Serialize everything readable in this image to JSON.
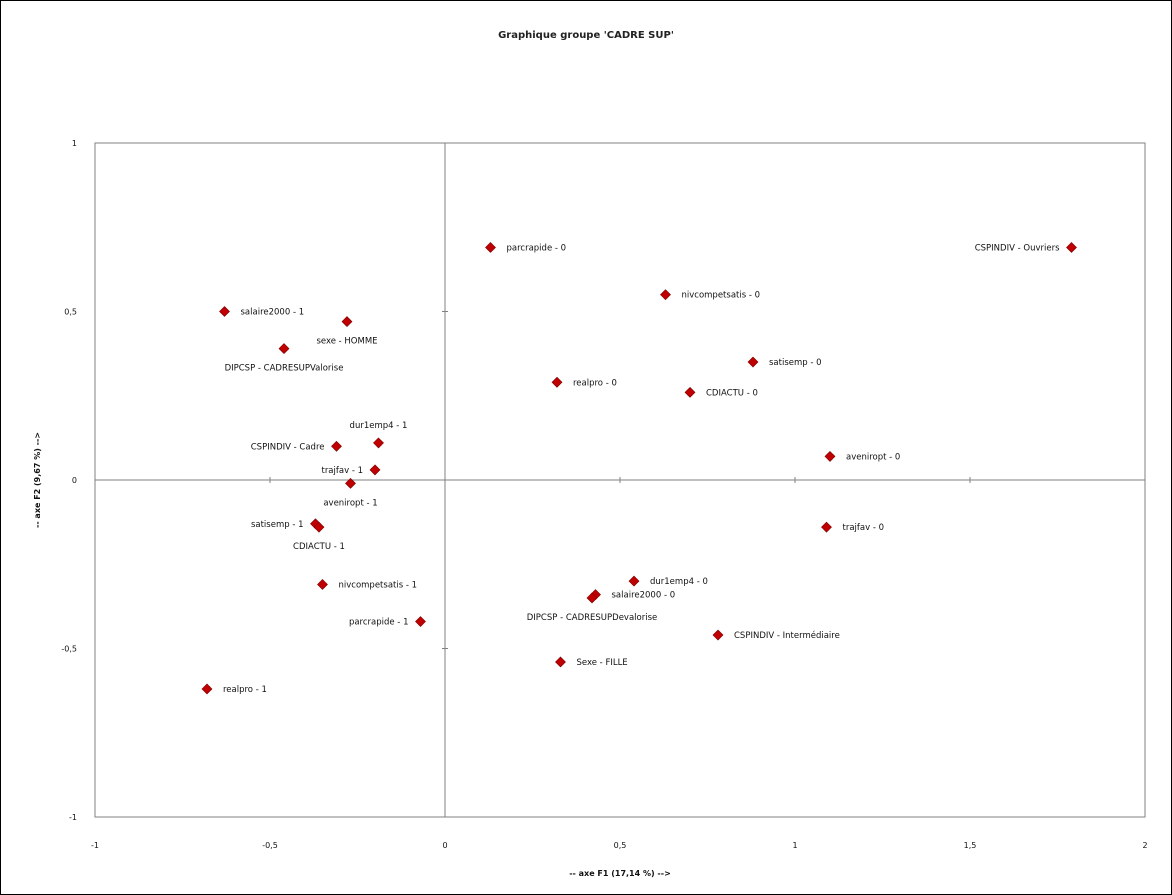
{
  "chart_data": {
    "type": "scatter",
    "title": "Graphique groupe  'CADRE SUP'",
    "xlabel": "-- axe F1 (17,14 %) -->",
    "ylabel": "-- axe F2 (9,67 %) -->",
    "xlim": [
      -1,
      2
    ],
    "ylim": [
      -1,
      1
    ],
    "x_ticks": [
      "-1",
      "-0,5",
      "0",
      "0,5",
      "1",
      "1,5",
      "2"
    ],
    "y_ticks": [
      "1",
      "0,5",
      "0",
      "-0,5",
      "-1"
    ],
    "marker_color": "#c00000",
    "grid": false,
    "points": [
      {
        "label": "parcrapide - 0",
        "x": 0.13,
        "y": 0.69,
        "anchor": "right"
      },
      {
        "label": "CSPINDIV - Ouvriers",
        "x": 1.79,
        "y": 0.69,
        "anchor": "left"
      },
      {
        "label": "nivcompetsatis - 0",
        "x": 0.63,
        "y": 0.55,
        "anchor": "right"
      },
      {
        "label": "salaire2000 - 1",
        "x": -0.63,
        "y": 0.5,
        "anchor": "right"
      },
      {
        "label": "sexe - HOMME",
        "x": -0.28,
        "y": 0.47,
        "anchor": "below"
      },
      {
        "label": "DIPCSP - CADRESUPValorise",
        "x": -0.46,
        "y": 0.39,
        "anchor": "below"
      },
      {
        "label": "satisemp - 0",
        "x": 0.88,
        "y": 0.35,
        "anchor": "right"
      },
      {
        "label": "realpro - 0",
        "x": 0.32,
        "y": 0.29,
        "anchor": "right"
      },
      {
        "label": "CDIACTU - 0",
        "x": 0.7,
        "y": 0.26,
        "anchor": "right"
      },
      {
        "label": "dur1emp4 - 1",
        "x": -0.19,
        "y": 0.11,
        "anchor": "above"
      },
      {
        "label": "CSPINDIV - Cadre",
        "x": -0.31,
        "y": 0.1,
        "anchor": "left"
      },
      {
        "label": "aveniropt - 0",
        "x": 1.1,
        "y": 0.07,
        "anchor": "right"
      },
      {
        "label": "trajfav - 1",
        "x": -0.2,
        "y": 0.03,
        "anchor": "left"
      },
      {
        "label": "aveniropt - 1",
        "x": -0.27,
        "y": -0.01,
        "anchor": "below"
      },
      {
        "label": "satisemp - 1",
        "x": -0.37,
        "y": -0.13,
        "anchor": "left"
      },
      {
        "label": "trajfav - 0",
        "x": 1.09,
        "y": -0.14,
        "anchor": "right"
      },
      {
        "label": "CDIACTU - 1",
        "x": -0.36,
        "y": -0.14,
        "anchor": "below"
      },
      {
        "label": "dur1emp4 - 0",
        "x": 0.54,
        "y": -0.3,
        "anchor": "right"
      },
      {
        "label": "nivcompetsatis - 1",
        "x": -0.35,
        "y": -0.31,
        "anchor": "right"
      },
      {
        "label": "salaire2000 - 0",
        "x": 0.43,
        "y": -0.34,
        "anchor": "right"
      },
      {
        "label": "DIPCSP - CADRESUPDevalorise",
        "x": 0.42,
        "y": -0.35,
        "anchor": "below"
      },
      {
        "label": "parcrapide - 1",
        "x": -0.07,
        "y": -0.42,
        "anchor": "left"
      },
      {
        "label": "CSPINDIV - Intermédiaire",
        "x": 0.78,
        "y": -0.46,
        "anchor": "right"
      },
      {
        "label": "Sexe - FILLE",
        "x": 0.33,
        "y": -0.54,
        "anchor": "right"
      },
      {
        "label": "realpro - 1",
        "x": -0.68,
        "y": -0.62,
        "anchor": "right"
      }
    ]
  }
}
